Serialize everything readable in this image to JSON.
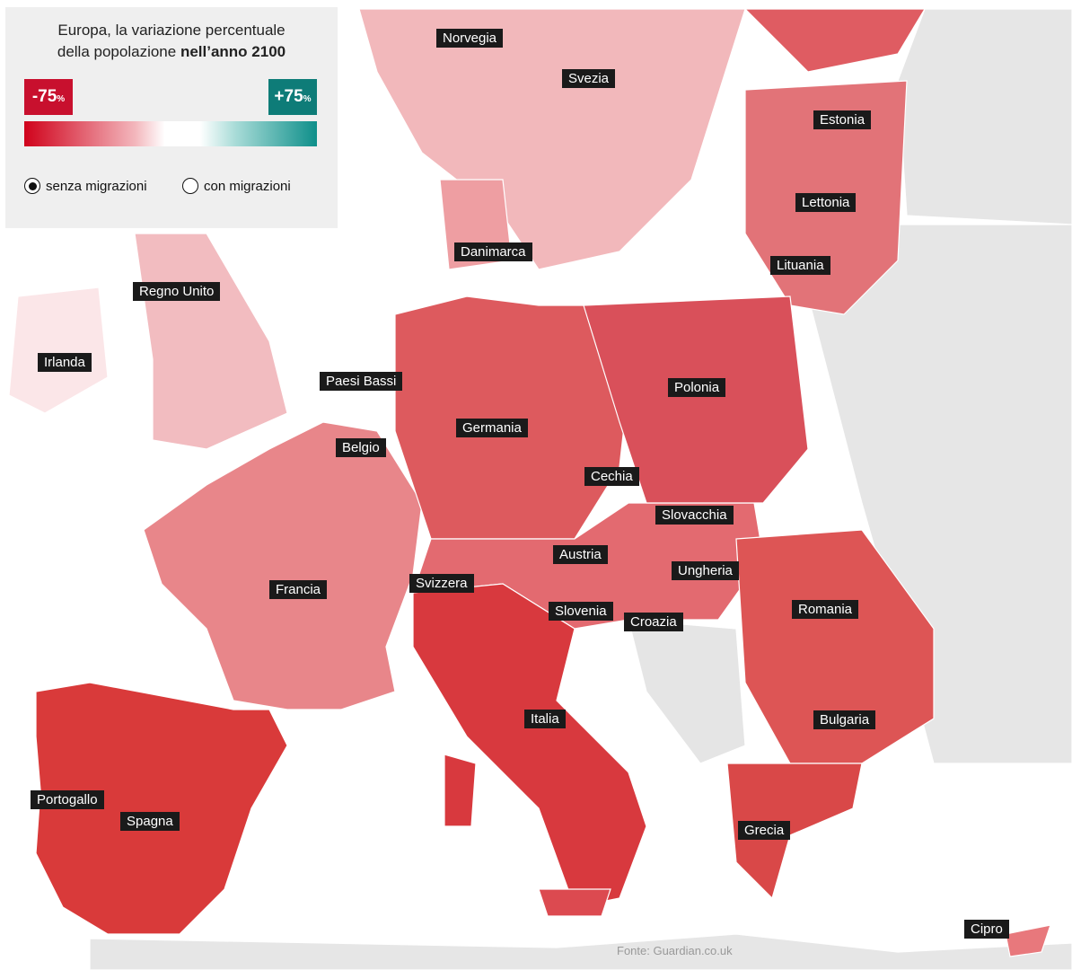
{
  "legend": {
    "title_line1": "Europa, la variazione percentuale",
    "title_line2": "della popolazione",
    "title_bold": "nell’anno 2100",
    "min_label": "-75",
    "max_label": "+75",
    "unit": "%",
    "options": [
      "senza migrazioni",
      "con migrazioni"
    ]
  },
  "countries": [
    "Norvegia",
    "Svezia",
    "Estonia",
    "Lettonia",
    "Lituania",
    "Danimarca",
    "Regno Unito",
    "Irlanda",
    "Paesi Bassi",
    "Polonia",
    "Germania",
    "Belgio",
    "Cechia",
    "Slovacchia",
    "Austria",
    "Ungheria",
    "Svizzera",
    "Francia",
    "Slovenia",
    "Romania",
    "Croazia",
    "Italia",
    "Bulgaria",
    "Portogallo",
    "Spagna",
    "Grecia",
    "Cipro"
  ],
  "source": "Fonte: Guardian.co.uk"
}
